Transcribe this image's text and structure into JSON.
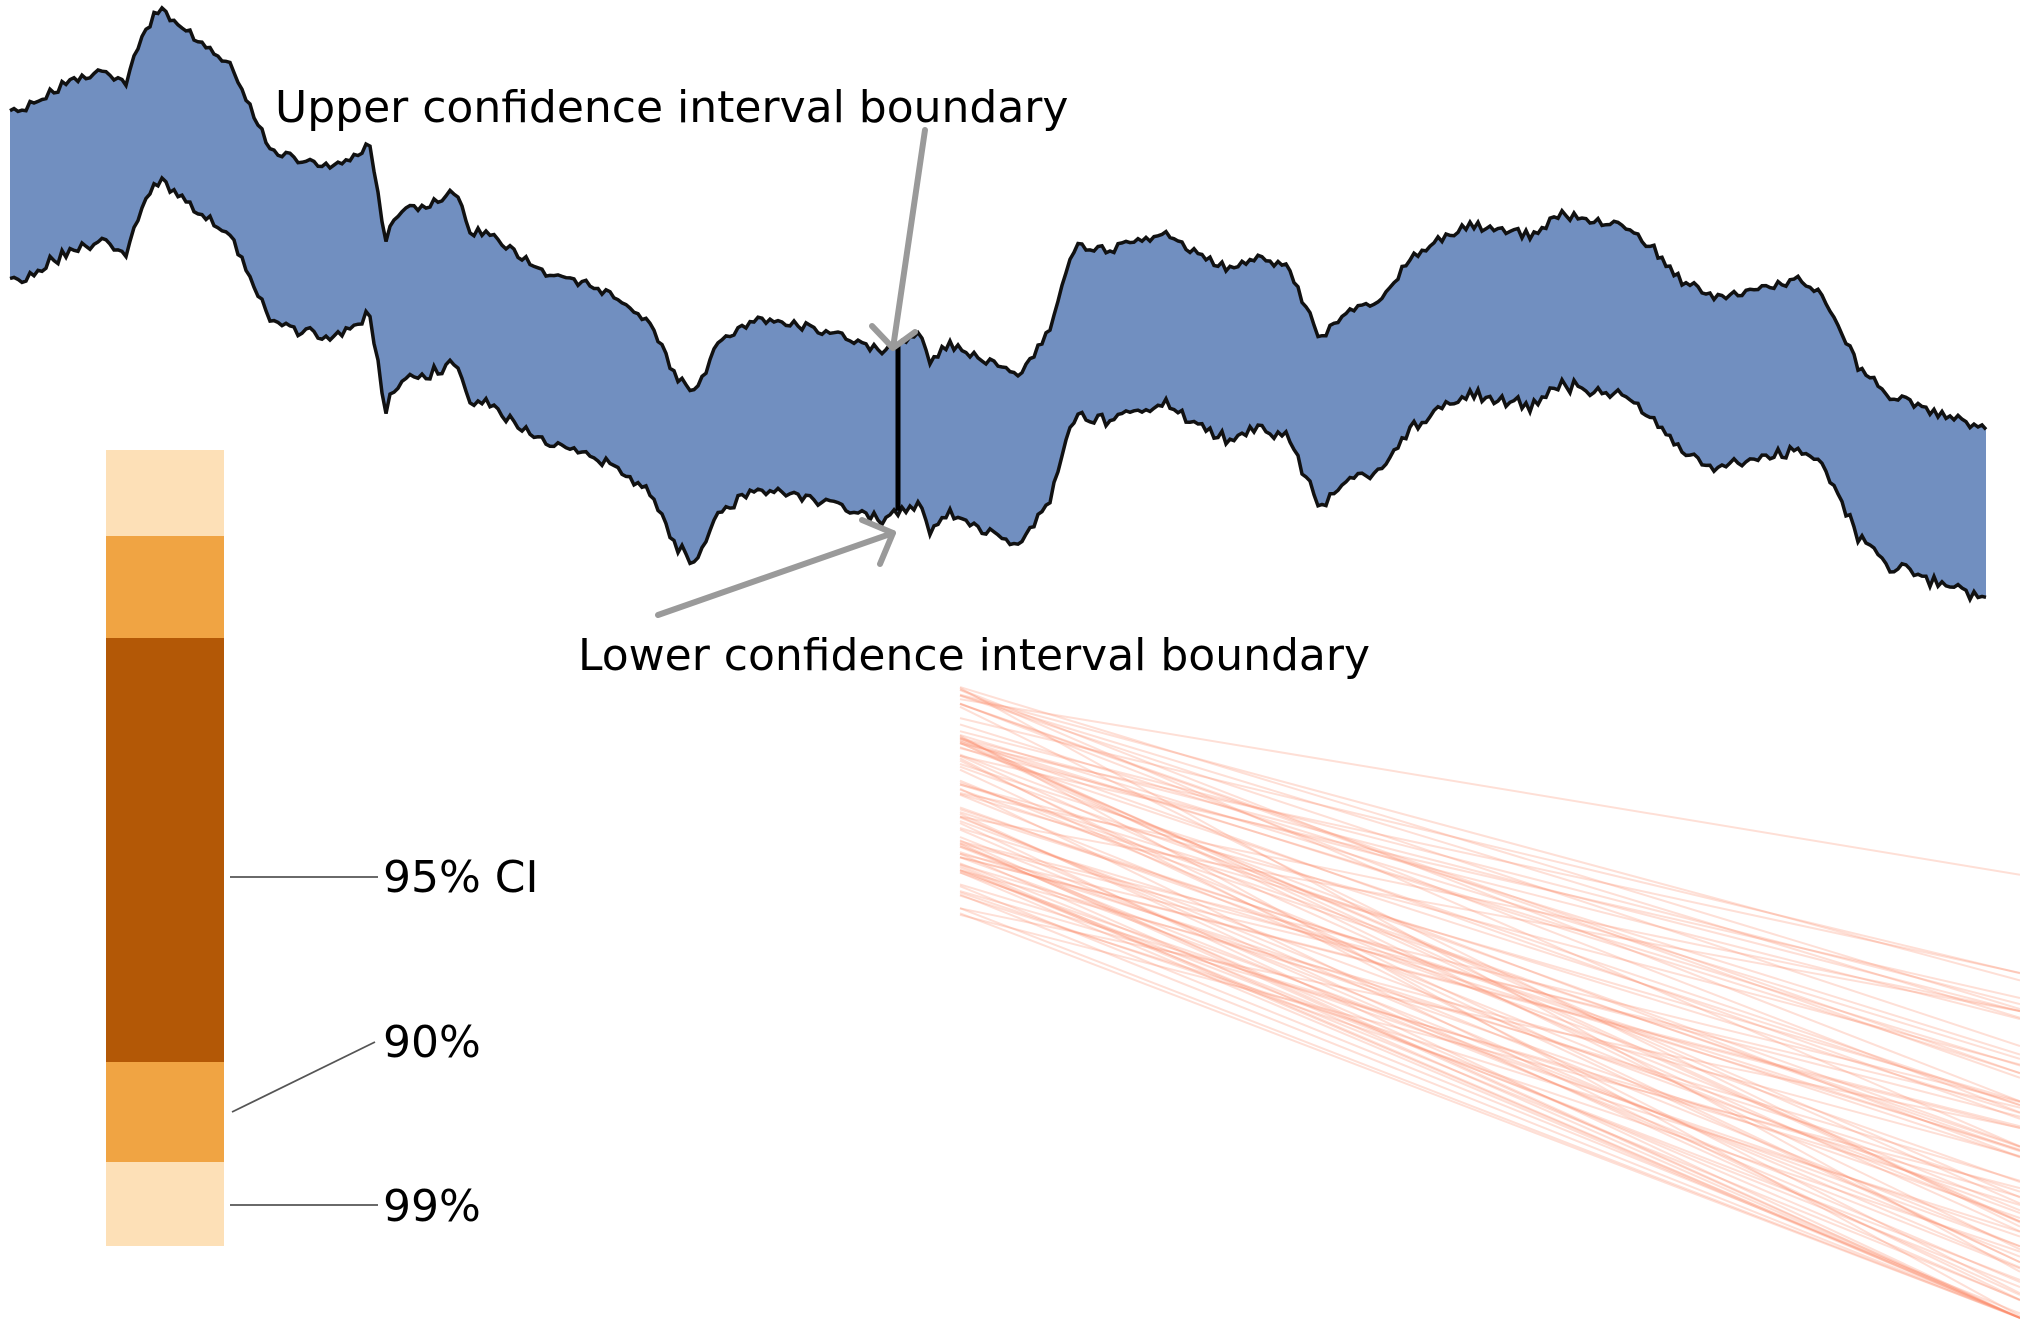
{
  "annotations": {
    "upper": "Upper confidence interval boundary",
    "lower": "Lower confidence interval boundary"
  },
  "legend": {
    "ci95": "95% CI",
    "ci90": "90%",
    "ci99": "99%"
  },
  "colors": {
    "band_fill": "#718fc0",
    "band_edge": "#111111",
    "arrow": "#9a9a9a",
    "ci99": "#fde0b7",
    "ci90": "#f0a443",
    "ci95": "#b35806",
    "lines": "#fc8d6a",
    "leader": "#555555"
  }
}
